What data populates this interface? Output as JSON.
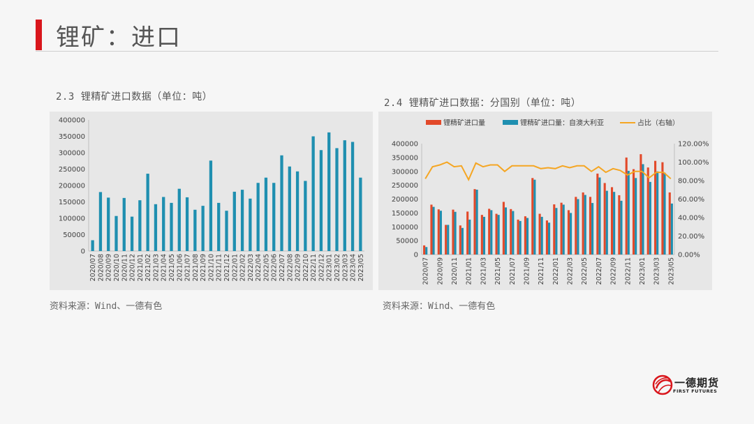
{
  "header": {
    "title": "锂矿：进口"
  },
  "left": {
    "caption": "2.3 锂精矿进口数据（单位：吨）",
    "source": "资料来源：Wind、一德有色"
  },
  "right": {
    "caption": "2.4 锂精矿进口数据：分国别（单位：吨）",
    "source": "资料来源：Wind、一德有色"
  },
  "logo": {
    "name": "一德期货",
    "en": "FIRST FUTURES"
  },
  "colors": {
    "teal": "#1f8fb0",
    "red": "#e2492a",
    "orange": "#f5a623",
    "accent": "#d9161c"
  },
  "chart_data": [
    {
      "type": "bar",
      "categories": [
        "2020/07",
        "2020/08",
        "2020/09",
        "2020/10",
        "2020/11",
        "2020/12",
        "2021/01",
        "2021/02",
        "2021/03",
        "2021/04",
        "2021/05",
        "2021/06",
        "2021/07",
        "2021/08",
        "2021/09",
        "2021/10",
        "2021/11",
        "2021/12",
        "2022/01",
        "2022/02",
        "2022/03",
        "2022/04",
        "2022/05",
        "2022/06",
        "2022/07",
        "2022/08",
        "2022/09",
        "2022/10",
        "2022/11",
        "2022/12",
        "2023/01",
        "2023/02",
        "2023/03",
        "2023/04",
        "2023/05"
      ],
      "series": [
        {
          "values": [
            33000,
            180000,
            163000,
            107000,
            162000,
            105000,
            155000,
            236000,
            143000,
            165000,
            147000,
            190000,
            164000,
            126000,
            138000,
            276000,
            147000,
            123000,
            181000,
            187000,
            160000,
            208000,
            224000,
            208000,
            292000,
            258000,
            243000,
            214000,
            350000,
            308000,
            362000,
            314000,
            338000,
            333000,
            224000
          ]
        }
      ],
      "ylim": [
        0,
        400000
      ],
      "yticks": [
        "0",
        "50000",
        "100000",
        "150000",
        "200000",
        "250000",
        "300000",
        "350000",
        "400000"
      ],
      "xticks": [
        "2020/07",
        "2020/08",
        "2020/09",
        "2020/10",
        "2020/11",
        "2020/12",
        "2021/01",
        "2021/02",
        "2021/03",
        "2021/04",
        "2021/05",
        "2021/06",
        "2021/07",
        "2021/08",
        "2021/09",
        "2021/10",
        "2021/11",
        "2021/12",
        "2022/01",
        "2022/02",
        "2022/03",
        "2022/04",
        "2022/05",
        "2022/06",
        "2022/07",
        "2022/08",
        "2022/09",
        "2022/10",
        "2022/11",
        "2022/12",
        "2023/01",
        "2023/02",
        "2023/03",
        "2023/04",
        "2023/05"
      ],
      "grid": false
    },
    {
      "type": "bar",
      "categories": [
        "2020/07",
        "2020/08",
        "2020/09",
        "2020/10",
        "2020/11",
        "2020/12",
        "2021/01",
        "2021/02",
        "2021/03",
        "2021/04",
        "2021/05",
        "2021/06",
        "2021/07",
        "2021/08",
        "2021/09",
        "2021/10",
        "2021/11",
        "2021/12",
        "2022/01",
        "2022/02",
        "2022/03",
        "2022/04",
        "2022/05",
        "2022/06",
        "2022/07",
        "2022/08",
        "2022/09",
        "2022/10",
        "2022/11",
        "2022/12",
        "2023/01",
        "2023/02",
        "2023/03",
        "2023/04",
        "2023/05"
      ],
      "series": [
        {
          "name": "锂精矿进口量",
          "type": "bar",
          "values": [
            33000,
            180000,
            163000,
            107000,
            162000,
            105000,
            155000,
            236000,
            143000,
            165000,
            147000,
            190000,
            164000,
            126000,
            138000,
            276000,
            147000,
            123000,
            181000,
            187000,
            160000,
            208000,
            224000,
            208000,
            292000,
            258000,
            243000,
            214000,
            350000,
            308000,
            362000,
            314000,
            338000,
            333000,
            224000
          ]
        },
        {
          "name": "锂精矿进口量：自澳大利亚",
          "type": "bar",
          "values": [
            27000,
            172000,
            158000,
            107000,
            154000,
            96000,
            126000,
            234000,
            136000,
            160000,
            143000,
            170000,
            157000,
            121000,
            132000,
            270000,
            136000,
            115000,
            168000,
            180000,
            150000,
            200000,
            215000,
            186000,
            278000,
            230000,
            226000,
            194000,
            302000,
            276000,
            326000,
            262000,
            300000,
            295000,
            184000
          ]
        },
        {
          "name": "占比（右轴）",
          "type": "line",
          "axis": "right",
          "values": [
            0.82,
            0.95,
            0.97,
            1.0,
            0.95,
            0.96,
            0.81,
            0.99,
            0.95,
            0.97,
            0.97,
            0.9,
            0.96,
            0.96,
            0.96,
            0.96,
            0.93,
            0.94,
            0.93,
            0.96,
            0.94,
            0.96,
            0.96,
            0.9,
            0.95,
            0.89,
            0.93,
            0.91,
            0.86,
            0.9,
            0.9,
            0.83,
            0.89,
            0.89,
            0.82
          ]
        }
      ],
      "ylim": [
        0,
        400000
      ],
      "yticks": [
        "0",
        "50000",
        "100000",
        "150000",
        "200000",
        "250000",
        "300000",
        "350000",
        "400000"
      ],
      "y2lim": [
        0,
        1.2
      ],
      "y2ticks": [
        "0.00%",
        "20.00%",
        "40.00%",
        "60.00%",
        "80.00%",
        "100.00%",
        "120.00%"
      ],
      "xticks": [
        "2020/07",
        "2020/09",
        "2020/11",
        "2021/01",
        "2021/03",
        "2021/05",
        "2021/07",
        "2021/09",
        "2021/11",
        "2022/01",
        "2022/03",
        "2022/05",
        "2022/07",
        "2022/09",
        "2022/11",
        "2023/01",
        "2023/03",
        "2023/05"
      ],
      "legend": "top",
      "grid": false
    }
  ]
}
